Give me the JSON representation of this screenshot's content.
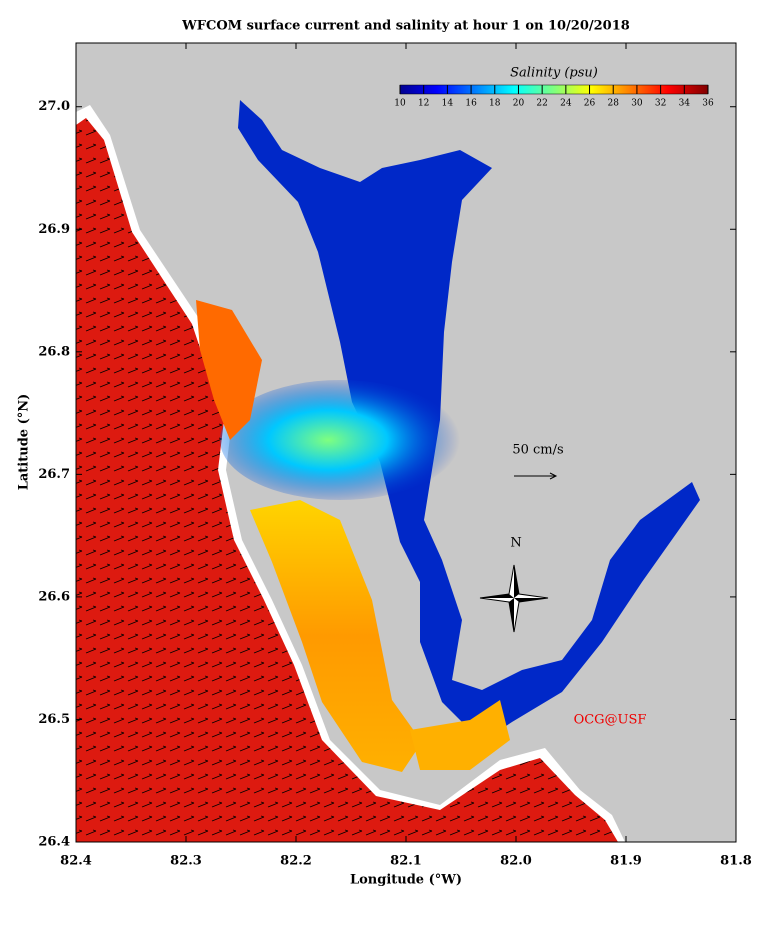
{
  "title": "WFCOM surface current and salinity at hour 1 on 10/20/2018",
  "x_label": "Longitude (°W)",
  "y_label": "Latitude (°N)",
  "xlim": [
    82.4,
    81.8
  ],
  "ylim": [
    26.4,
    27.052
  ],
  "xticks": [
    82.4,
    82.3,
    82.2,
    82.1,
    {
      "value": 82.0,
      "label": "82.0"
    },
    81.9,
    81.8
  ],
  "yticks": [
    26.4,
    26.5,
    26.6,
    26.7,
    26.8,
    26.9,
    {
      "value": 27.0,
      "label": "27.0"
    }
  ],
  "colorbar": {
    "title": "Salinity (psu)",
    "lim": [
      10,
      36
    ],
    "ticks": [
      10,
      12,
      14,
      16,
      18,
      20,
      22,
      24,
      26,
      28,
      30,
      32,
      34,
      36
    ]
  },
  "scale_label": "50 cm/s",
  "compass_label": "N",
  "credit": "OCG@USF"
}
